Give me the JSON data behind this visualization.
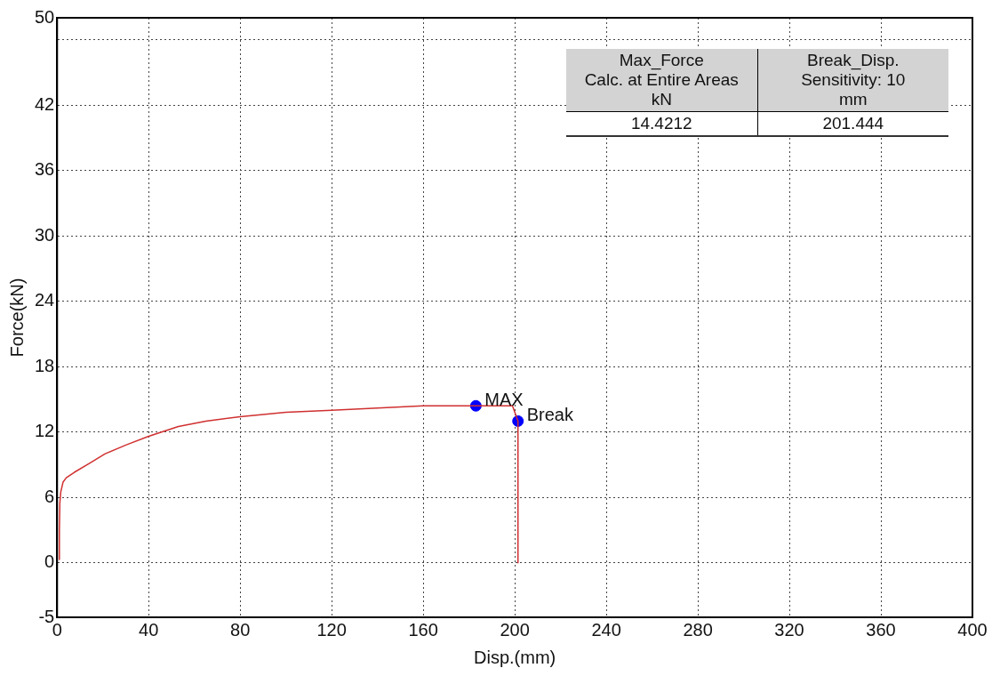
{
  "chart_data": {
    "type": "line",
    "xlabel": "Disp.(mm)",
    "ylabel": "Force(kN)",
    "xlim": [
      0,
      400
    ],
    "xticks": [
      0,
      40,
      80,
      120,
      160,
      200,
      240,
      280,
      320,
      360,
      400
    ],
    "ylim": [
      -5,
      50
    ],
    "yticks": [
      -5,
      0,
      6,
      12,
      18,
      24,
      30,
      36,
      42,
      {
        "value": 48,
        "label": null
      },
      50
    ],
    "grid": true,
    "legend": false,
    "series": [
      {
        "color": "#d03030",
        "x": [
          0.8,
          1,
          1.2,
          1.6,
          2.6,
          4,
          7.5,
          14,
          21,
          30,
          40,
          53,
          65,
          80,
          100,
          120,
          140,
          160,
          183,
          199,
          201.4,
          201.4
        ],
        "values": [
          0.3,
          3,
          5.5,
          6.5,
          7.4,
          7.8,
          8.3,
          9.1,
          10,
          10.8,
          11.6,
          12.5,
          13,
          13.4,
          13.8,
          14,
          14.2,
          14.4,
          14.4,
          14.4,
          13,
          0
        ]
      },
      {
        "type": "scatter",
        "marker": "circle",
        "color": "#0000ff",
        "x": [
          183,
          201.4
        ],
        "values": [
          14.4,
          13
        ]
      }
    ],
    "annotations": [
      {
        "text": "MAX",
        "x": 183,
        "y": 14.4
      },
      {
        "text": "Break",
        "x": 201.4,
        "y": 13
      },
      "Max_Force\nCalc. at Entire Areas\nkN",
      "Break_Disp.\nSensitivity: 10\nmm",
      "14.4212",
      "201.444"
    ]
  }
}
